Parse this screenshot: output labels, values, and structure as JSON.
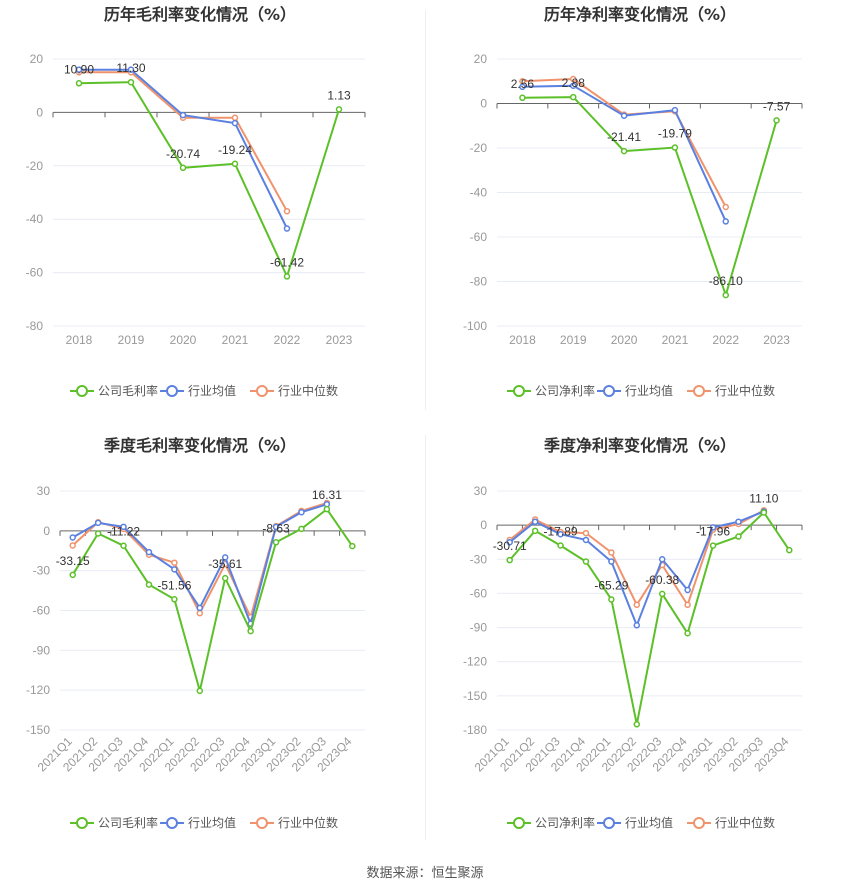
{
  "colors": {
    "company": "#5cc028",
    "average": "#5a80e0",
    "median": "#f0936c",
    "grid": "#e8ecf4",
    "axis": "#666666"
  },
  "source_prefix": "数据来源：",
  "source_name": "恒生聚源",
  "chart_data": [
    {
      "type": "line",
      "title": "历年毛利率变化情况（%）",
      "categories": [
        "2018",
        "2019",
        "2020",
        "2021",
        "2022",
        "2023"
      ],
      "ylim": [
        -80,
        20
      ],
      "yticks": [
        20,
        0,
        -20,
        -40,
        -60,
        -80
      ],
      "grid": true,
      "legend": "bottom",
      "series": [
        {
          "name": "公司毛利率",
          "key": "company",
          "values": [
            10.9,
            11.3,
            -20.74,
            -19.24,
            -61.42,
            1.13
          ],
          "labels": [
            "10.90",
            "11.30",
            "-20.74",
            "-19.24",
            "-61.42",
            "1.13"
          ]
        },
        {
          "name": "行业均值",
          "key": "average",
          "values": [
            16.0,
            16.0,
            -1.0,
            -4.0,
            -43.5,
            null
          ]
        },
        {
          "name": "行业中位数",
          "key": "median",
          "values": [
            15.0,
            15.0,
            -2.0,
            -2.0,
            -37.0,
            null
          ]
        }
      ]
    },
    {
      "type": "line",
      "title": "历年净利率变化情况（%）",
      "categories": [
        "2018",
        "2019",
        "2020",
        "2021",
        "2022",
        "2023"
      ],
      "ylim": [
        -100,
        20
      ],
      "yticks": [
        20,
        0,
        -20,
        -40,
        -60,
        -80,
        -100
      ],
      "grid": true,
      "legend": "bottom",
      "series": [
        {
          "name": "公司净利率",
          "key": "company",
          "values": [
            2.56,
            2.88,
            -21.41,
            -19.79,
            -86.1,
            -7.57
          ],
          "labels": [
            "2.56",
            "2.88",
            "-21.41",
            "-19.79",
            "-86.10",
            "-7.57"
          ]
        },
        {
          "name": "行业均值",
          "key": "average",
          "values": [
            7.5,
            8.0,
            -5.5,
            -3.0,
            -53.0,
            null
          ]
        },
        {
          "name": "行业中位数",
          "key": "median",
          "values": [
            10.0,
            11.0,
            -5.0,
            -3.5,
            -46.5,
            null
          ]
        }
      ]
    },
    {
      "type": "line",
      "title": "季度毛利率变化情况（%）",
      "categories": [
        "2021Q1",
        "2021Q2",
        "2021Q3",
        "2021Q4",
        "2022Q1",
        "2022Q2",
        "2022Q3",
        "2022Q4",
        "2023Q1",
        "2023Q2",
        "2023Q3",
        "2023Q4"
      ],
      "ylim": [
        -150,
        30
      ],
      "yticks": [
        30,
        0,
        -30,
        -60,
        -90,
        -120,
        -150
      ],
      "grid": true,
      "legend": "bottom",
      "series": [
        {
          "name": "公司毛利率",
          "key": "company",
          "values": [
            -33.15,
            -2.0,
            -11.22,
            -40.5,
            -51.56,
            -120.5,
            -35.61,
            -75.5,
            -8.63,
            1.5,
            16.31,
            -11.5
          ],
          "labels": [
            "-33.15",
            null,
            "-11.22",
            null,
            "-51.56",
            null,
            "-35.61",
            null,
            "-8.63",
            null,
            "16.31",
            null
          ]
        },
        {
          "name": "行业均值",
          "key": "average",
          "values": [
            -5.0,
            6.0,
            3.0,
            -16.0,
            -29.0,
            -58.0,
            -20.0,
            -70.0,
            3.0,
            14.0,
            20.0,
            null
          ]
        },
        {
          "name": "行业中位数",
          "key": "median",
          "values": [
            -11.0,
            6.5,
            1.5,
            -18.0,
            -24.0,
            -62.0,
            -25.0,
            -65.0,
            3.5,
            15.0,
            21.0,
            null
          ]
        }
      ]
    },
    {
      "type": "line",
      "title": "季度净利率变化情况（%）",
      "categories": [
        "2021Q1",
        "2021Q2",
        "2021Q3",
        "2021Q4",
        "2022Q1",
        "2022Q2",
        "2022Q3",
        "2022Q4",
        "2023Q1",
        "2023Q2",
        "2023Q3",
        "2023Q4"
      ],
      "ylim": [
        -180,
        30
      ],
      "yticks": [
        30,
        0,
        -30,
        -60,
        -90,
        -120,
        -150,
        -180
      ],
      "grid": true,
      "legend": "bottom",
      "series": [
        {
          "name": "公司净利率",
          "key": "company",
          "values": [
            -30.71,
            -5.0,
            -17.89,
            -32.0,
            -65.29,
            -175.0,
            -60.38,
            -95.0,
            -17.96,
            -10.0,
            11.1,
            -22.0
          ],
          "labels": [
            "-30.71",
            null,
            "-17.89",
            null,
            "-65.29",
            null,
            "-60.38",
            null,
            "-17.96",
            null,
            "11.10",
            null
          ]
        },
        {
          "name": "行业均值",
          "key": "average",
          "values": [
            -15.0,
            3.0,
            -8.0,
            -13.0,
            -32.0,
            -88.0,
            -30.0,
            -57.0,
            -2.0,
            3.0,
            12.0,
            null
          ]
        },
        {
          "name": "行业中位数",
          "key": "median",
          "values": [
            -13.0,
            5.0,
            -6.0,
            -7.0,
            -24.0,
            -70.0,
            -35.0,
            -70.0,
            -4.0,
            1.0,
            13.0,
            null
          ]
        }
      ]
    }
  ]
}
